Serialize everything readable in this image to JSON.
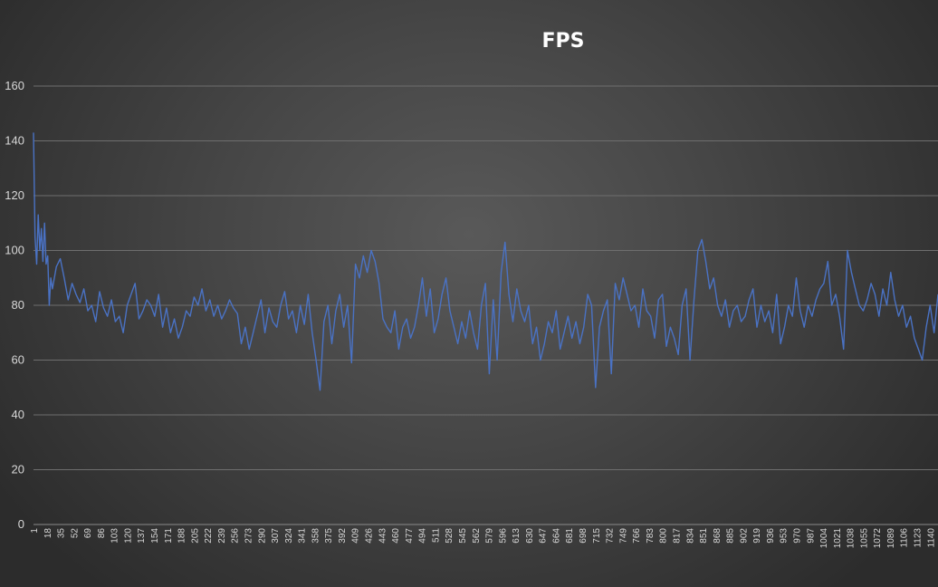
{
  "chart_data": {
    "type": "line",
    "title": "FPS",
    "xlabel": "",
    "ylabel": "",
    "ylim": [
      0,
      160
    ],
    "yticks": [
      0,
      20,
      40,
      60,
      80,
      100,
      120,
      140,
      160
    ],
    "xlim": [
      1,
      1150
    ],
    "xticks": [
      "1",
      "18",
      "35",
      "52",
      "69",
      "86",
      "103",
      "120",
      "137",
      "154",
      "171",
      "188",
      "205",
      "222",
      "239",
      "256",
      "273",
      "290",
      "307",
      "324",
      "341",
      "358",
      "375",
      "392",
      "409",
      "426",
      "443",
      "460",
      "477",
      "494",
      "511",
      "528",
      "545",
      "562",
      "579",
      "596",
      "613",
      "630",
      "647",
      "664",
      "681",
      "698",
      "715",
      "732",
      "749",
      "766",
      "783",
      "800",
      "817",
      "834",
      "851",
      "868",
      "885",
      "902",
      "919",
      "936",
      "953",
      "970",
      "987",
      "1004",
      "1021",
      "1038",
      "1055",
      "1072",
      "1089",
      "1106",
      "1123",
      "1140"
    ],
    "grid": true,
    "legend": "none",
    "line_color": "#4a72c4",
    "series": [
      {
        "x": [
          1,
          3,
          5,
          7,
          9,
          11,
          13,
          15,
          17,
          19,
          21,
          23,
          25,
          30,
          35,
          40,
          45,
          50,
          55,
          60,
          65,
          70,
          75,
          80,
          85,
          90,
          95,
          100,
          105,
          110,
          115,
          120,
          125,
          130,
          135,
          140,
          145,
          150,
          155,
          160,
          165,
          170,
          175,
          180,
          185,
          190,
          195,
          200,
          205,
          210,
          215,
          220,
          225,
          230,
          235,
          240,
          245,
          250,
          255,
          260,
          265,
          270,
          275,
          280,
          285,
          290,
          295,
          300,
          305,
          310,
          315,
          320,
          325,
          330,
          335,
          340,
          345,
          350,
          355,
          360,
          365,
          370,
          375,
          380,
          385,
          390,
          395,
          400,
          405,
          410,
          415,
          420,
          425,
          430,
          435,
          440,
          445,
          450,
          455,
          460,
          465,
          470,
          475,
          480,
          485,
          490,
          495,
          500,
          505,
          510,
          515,
          520,
          525,
          530,
          535,
          540,
          545,
          550,
          555,
          560,
          565,
          570,
          575,
          580,
          585,
          590,
          595,
          600,
          605,
          610,
          615,
          620,
          625,
          630,
          635,
          640,
          645,
          650,
          655,
          660,
          665,
          670,
          675,
          680,
          685,
          690,
          695,
          700,
          705,
          710,
          715,
          720,
          725,
          730,
          735,
          740,
          745,
          750,
          755,
          760,
          765,
          770,
          775,
          780,
          785,
          790,
          795,
          800,
          805,
          810,
          815,
          820,
          825,
          830,
          835,
          840,
          845,
          850,
          855,
          860,
          865,
          870,
          875,
          880,
          885,
          890,
          895,
          900,
          905,
          910,
          915,
          920,
          925,
          930,
          935,
          940,
          945,
          950,
          955,
          960,
          965,
          970,
          975,
          980,
          985,
          990,
          995,
          1000,
          1005,
          1010,
          1015,
          1020,
          1025,
          1030,
          1035,
          1040,
          1045,
          1050,
          1055,
          1060,
          1065,
          1070,
          1075,
          1080,
          1085,
          1090,
          1095,
          1100,
          1105,
          1110,
          1115,
          1120,
          1125,
          1130,
          1135,
          1140,
          1145,
          1150
        ],
        "values": [
          143,
          105,
          95,
          113,
          100,
          108,
          96,
          110,
          95,
          98,
          80,
          90,
          86,
          94,
          97,
          90,
          82,
          88,
          84,
          81,
          86,
          78,
          80,
          74,
          85,
          79,
          76,
          82,
          74,
          76,
          70,
          80,
          84,
          88,
          75,
          78,
          82,
          80,
          76,
          84,
          72,
          79,
          70,
          75,
          68,
          72,
          78,
          76,
          83,
          80,
          86,
          78,
          82,
          76,
          80,
          75,
          78,
          82,
          79,
          77,
          66,
          72,
          64,
          70,
          76,
          82,
          70,
          79,
          74,
          72,
          80,
          85,
          75,
          78,
          70,
          80,
          73,
          84,
          70,
          60,
          49,
          74,
          80,
          66,
          78,
          84,
          72,
          80,
          59,
          95,
          90,
          98,
          92,
          100,
          96,
          88,
          75,
          72,
          70,
          78,
          64,
          72,
          75,
          68,
          72,
          80,
          90,
          76,
          86,
          70,
          75,
          84,
          90,
          78,
          72,
          66,
          74,
          68,
          78,
          70,
          64,
          80,
          88,
          55,
          82,
          60,
          92,
          103,
          84,
          74,
          86,
          78,
          74,
          80,
          66,
          72,
          60,
          66,
          74,
          70,
          78,
          64,
          70,
          76,
          68,
          74,
          66,
          72,
          84,
          80,
          50,
          72,
          78,
          82,
          55,
          88,
          82,
          90,
          84,
          78,
          80,
          72,
          86,
          78,
          76,
          68,
          82,
          84,
          65,
          72,
          68,
          62,
          80,
          86,
          60,
          82,
          100,
          104,
          96,
          86,
          90,
          80,
          76,
          82,
          72,
          78,
          80,
          74,
          76,
          82,
          86,
          72,
          80,
          74,
          78,
          70,
          84,
          66,
          72,
          80,
          76,
          90,
          78,
          72,
          80,
          76,
          82,
          86,
          88,
          96,
          80,
          84,
          76,
          64,
          100,
          92,
          86,
          80,
          78,
          82,
          88,
          84,
          76,
          86,
          80,
          92,
          82,
          76,
          80,
          72,
          76,
          68,
          64,
          60,
          72,
          80,
          70,
          84
        ]
      }
    ]
  }
}
